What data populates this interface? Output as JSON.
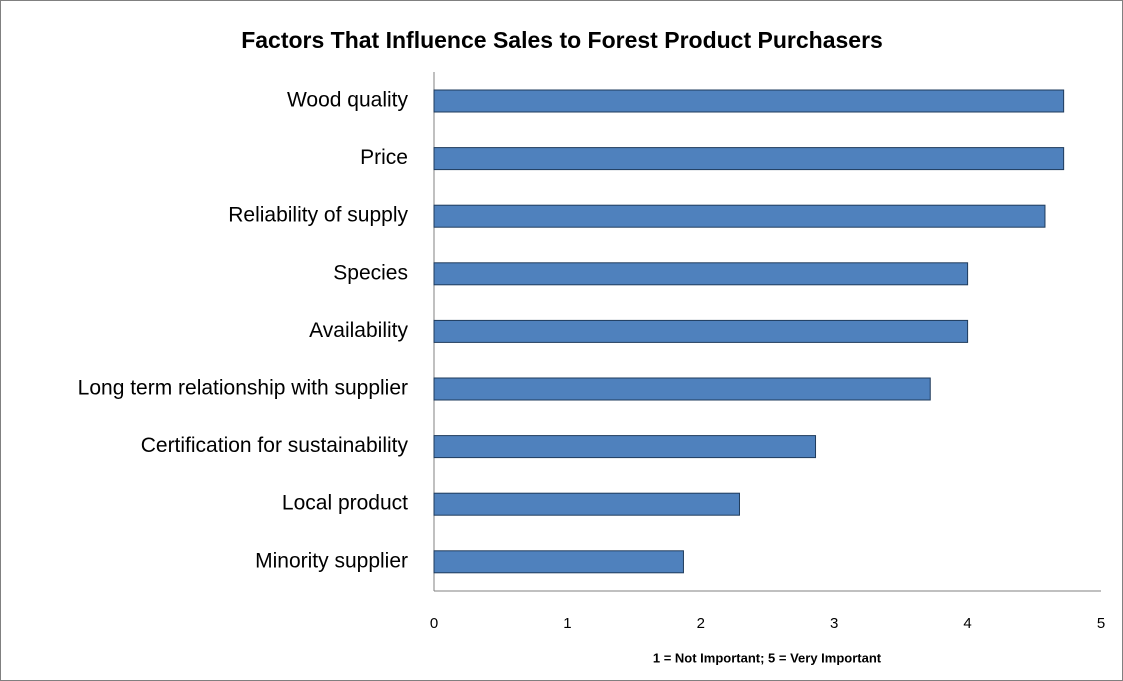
{
  "chart_data": {
    "type": "barh",
    "title": "Factors That Influence Sales to Forest Product Purchasers",
    "xlabel": "1 = Not Important; 5 = Very Important",
    "categories": [
      "Wood quality",
      "Price",
      "Reliability of supply",
      "Species",
      "Availability",
      "Long term relationship with supplier",
      "Certification for sustainability",
      "Local product",
      "Minority supplier"
    ],
    "values": [
      4.72,
      4.72,
      4.58,
      4.0,
      4.0,
      3.72,
      2.86,
      2.29,
      1.87
    ],
    "color": "#4f81bd",
    "xlim": [
      0,
      5
    ],
    "xticks": [
      0,
      1,
      2,
      3,
      4,
      5
    ],
    "grid": false
  }
}
